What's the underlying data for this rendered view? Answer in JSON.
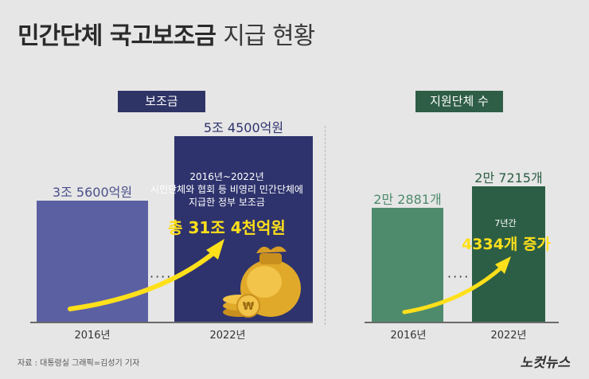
{
  "title": {
    "bold": "민간단체 국고보조금",
    "light": "지급 현황"
  },
  "chart_data": [
    {
      "type": "bar",
      "title": "보조금",
      "categories": [
        "2016년",
        "2022년"
      ],
      "values": [
        35600,
        54500
      ],
      "value_labels": [
        "3조 5600억원",
        "5조 4500억원"
      ],
      "unit": "억원",
      "colors": [
        "#5b60a3",
        "#2e336d"
      ],
      "annotation": {
        "text": "2016년~2022년\n시민단체와 협회 등 비영리 민간단체에\n지급한 정부 보조금",
        "highlight": "총 31조 4천억원"
      }
    },
    {
      "type": "bar",
      "title": "지원단체 수",
      "categories": [
        "2016년",
        "2022년"
      ],
      "values": [
        22881,
        27215
      ],
      "value_labels": [
        "2만 2881개",
        "2만 7215개"
      ],
      "unit": "개",
      "colors": [
        "#4e8b6d",
        "#2c5e45"
      ],
      "annotation": {
        "text": "7년간",
        "highlight": "4334개 증가"
      }
    }
  ],
  "footer": {
    "source": "자료 : 대통령실   그래픽=김성기 기자",
    "logo": "노컷뉴스"
  },
  "dots": "····",
  "colors": {
    "background": "#e6e6e6",
    "accent": "#ffe01a"
  }
}
